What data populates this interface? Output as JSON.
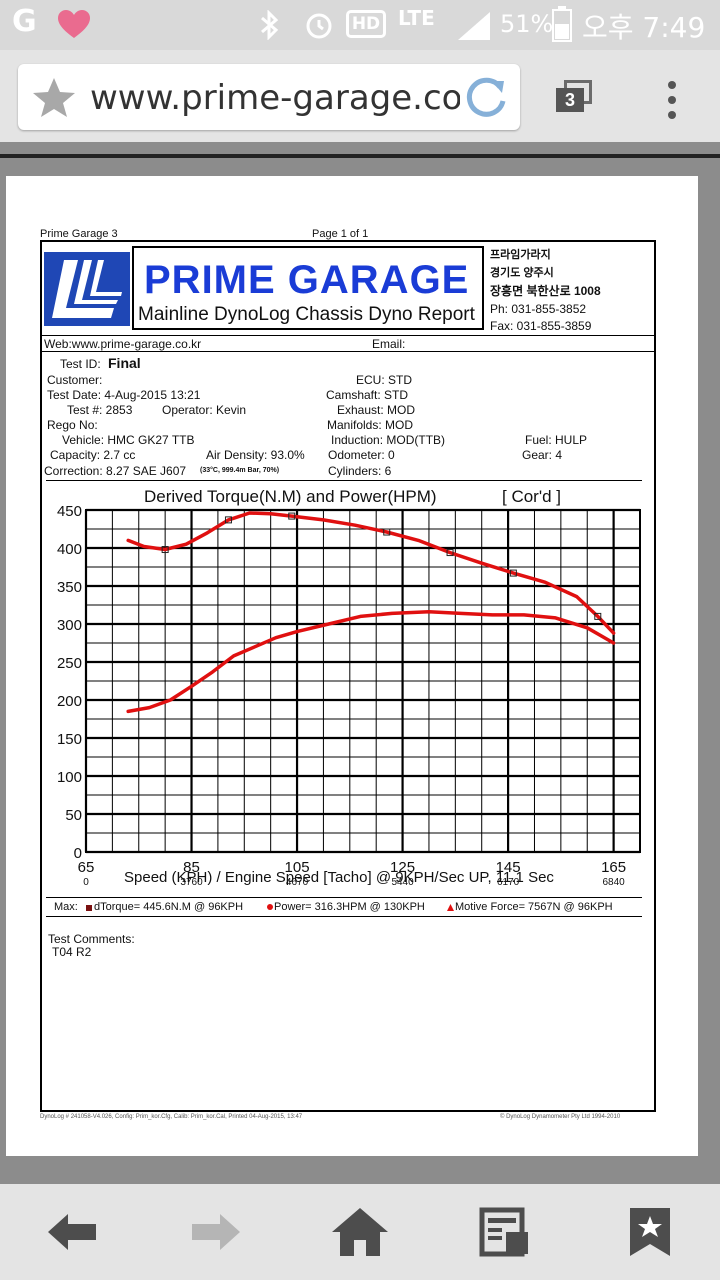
{
  "status_bar": {
    "notification_icon_g": "G",
    "battery_percent": "51%",
    "lte": "LTE",
    "hd": "HD",
    "clock": "오후 7:49"
  },
  "browser": {
    "url": "www.prime-garage.co",
    "tab_count": "3"
  },
  "report": {
    "header_left": "Prime Garage 3",
    "header_page": "Page 1 of 1",
    "brand_title": "PRIME GARAGE",
    "brand_subtitle": "Mainline DynoLog Chassis Dyno Report",
    "address": [
      "프라임가라지",
      "경기도 양주시",
      "장흥면 북한산로 1008"
    ],
    "phone": "Ph: 031-855-3852",
    "fax": "Fax: 031-855-3859",
    "web": "Web:www.prime-garage.co.kr",
    "email_label": "Email:",
    "test_id_label": "Test ID:",
    "test_id_value": "Final",
    "fields": {
      "customer": "Customer:",
      "test_date": "Test Date: 4-Aug-2015 13:21",
      "test_no": "Test #: 2853",
      "operator": "Operator: Kevin",
      "rego_no": "Rego No:",
      "vehicle": "Vehicle: HMC GK27 TTB",
      "capacity": "Capacity: 2.7 cc",
      "air_density": "Air Density: 93.0%",
      "correction": "Correction: 8.27 SAE J607",
      "correction_detail": "(33°C, 999.4m Bar, 70%)",
      "ecu": "ECU: STD",
      "camshaft": "Camshaft: STD",
      "exhaust": "Exhaust: MOD",
      "manifolds": "Manifolds: MOD",
      "induction": "Induction: MOD(TTB)",
      "odometer": "Odometer: 0",
      "cylinders": "Cylinders: 6",
      "fuel": "Fuel: HULP",
      "gear": "Gear: 4"
    },
    "max_line": {
      "label": "Max:",
      "torque": "dTorque= 445.6N.M @ 96KPH",
      "power": "Power= 316.3HPM @ 130KPH",
      "motive": "Motive Force= 7567N @ 96KPH"
    },
    "comments_label": "Test Comments:",
    "comments_value": "T04 R2",
    "footer_left": "DynoLog # 241058-V4.026, Config: Prim_kor.Cfg, Calib: Prim_kor.Cal, Printed 04-Aug-2015, 13:47",
    "footer_right": "© DynoLog Dynamometer Pty Ltd 1994-2010"
  },
  "chart_data": {
    "type": "line",
    "title": "Derived Torque(N.M) and Power(HPM)",
    "title_suffix": "[ Cor'd ]",
    "xlabel": "Speed (KPH) / Engine Speed [Tacho] @ 9KPH/Sec UP, 11.1 Sec",
    "xlim": [
      65,
      170
    ],
    "ylim": [
      0,
      450
    ],
    "x_ticks": [
      "65",
      "85",
      "105",
      "125",
      "145",
      "165"
    ],
    "rpm_ticks": [
      "0",
      "3760",
      "4670",
      "5440",
      "6170",
      "6840"
    ],
    "y_ticks": [
      "0",
      "50",
      "100",
      "150",
      "200",
      "250",
      "300",
      "350",
      "400",
      "450"
    ],
    "grid": true,
    "series": [
      {
        "name": "dTorque",
        "color": "#e01010",
        "x": [
          73,
          76,
          80,
          84,
          88,
          92,
          96,
          100,
          104,
          110,
          116,
          122,
          128,
          134,
          140,
          146,
          152,
          158,
          162,
          165
        ],
        "y": [
          410,
          402,
          398,
          405,
          420,
          437,
          446,
          445,
          442,
          437,
          430,
          421,
          410,
          394,
          380,
          367,
          355,
          336,
          310,
          288
        ]
      },
      {
        "name": "Power",
        "color": "#e01010",
        "x": [
          73,
          77,
          81,
          85,
          89,
          93,
          97,
          101,
          105,
          111,
          117,
          123,
          130,
          136,
          142,
          148,
          154,
          160,
          165
        ],
        "y": [
          185,
          190,
          200,
          218,
          237,
          258,
          270,
          282,
          290,
          300,
          310,
          314,
          316,
          314,
          312,
          312,
          308,
          295,
          275
        ]
      }
    ]
  }
}
